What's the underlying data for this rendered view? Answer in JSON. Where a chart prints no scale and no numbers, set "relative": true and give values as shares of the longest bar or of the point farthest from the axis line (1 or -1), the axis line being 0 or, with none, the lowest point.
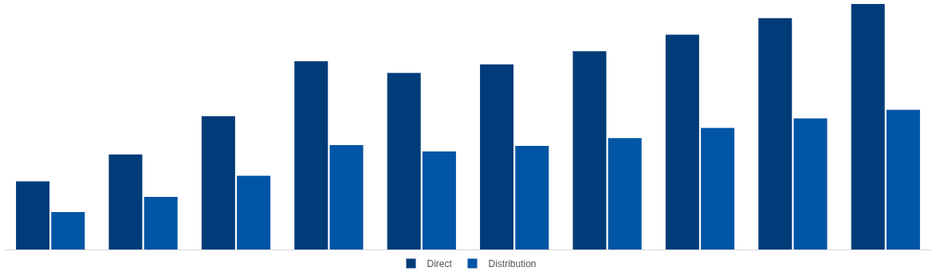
{
  "chart_data": {
    "type": "bar",
    "relative": true,
    "legend": "bottom",
    "categories": [
      null,
      null,
      null,
      null,
      null,
      null,
      null,
      null,
      null,
      null
    ],
    "series": [
      {
        "name": "Direct",
        "color": "#003b7a",
        "values": [
          0.278,
          0.387,
          0.543,
          0.767,
          0.719,
          0.754,
          0.808,
          0.875,
          0.942,
          1
        ]
      },
      {
        "name": "Distribution",
        "color": "#0055a6",
        "values": [
          0.153,
          0.214,
          0.3,
          0.425,
          0.399,
          0.422,
          0.454,
          0.495,
          0.534,
          0.569
        ]
      }
    ]
  }
}
